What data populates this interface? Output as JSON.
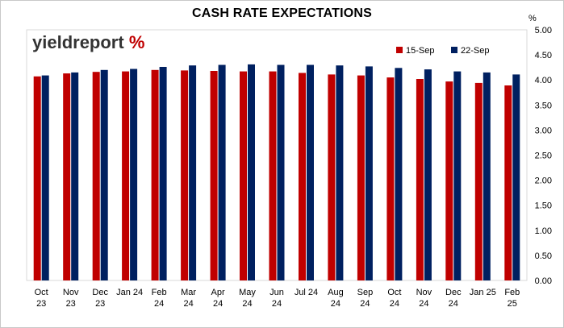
{
  "chart_data": {
    "type": "bar",
    "title": "CASH RATE EXPECTATIONS",
    "unit": "%",
    "logo": {
      "word": "yieldreport",
      "symbol": "%"
    },
    "categories": [
      [
        "Oct",
        "23"
      ],
      [
        "Nov",
        "23"
      ],
      [
        "Dec",
        "23"
      ],
      [
        "Jan 24",
        ""
      ],
      [
        "Feb",
        "24"
      ],
      [
        "Mar",
        "24"
      ],
      [
        "Apr",
        "24"
      ],
      [
        "May",
        "24"
      ],
      [
        "Jun",
        "24"
      ],
      [
        "Jul 24",
        ""
      ],
      [
        "Aug",
        "24"
      ],
      [
        "Sep",
        "24"
      ],
      [
        "Oct",
        "24"
      ],
      [
        "Nov",
        "24"
      ],
      [
        "Dec",
        "24"
      ],
      [
        "Jan 25",
        ""
      ],
      [
        "Feb",
        "25"
      ]
    ],
    "series": [
      {
        "name": "15-Sep",
        "color": "#c00000",
        "values": [
          4.07,
          4.13,
          4.16,
          4.17,
          4.2,
          4.19,
          4.18,
          4.17,
          4.17,
          4.14,
          4.11,
          4.09,
          4.05,
          4.02,
          3.97,
          3.94,
          3.89
        ]
      },
      {
        "name": "22-Sep",
        "color": "#002060",
        "values": [
          4.09,
          4.15,
          4.2,
          4.22,
          4.26,
          4.29,
          4.3,
          4.31,
          4.3,
          4.3,
          4.29,
          4.27,
          4.24,
          4.21,
          4.17,
          4.15,
          4.11
        ]
      }
    ],
    "yticks": [
      "5.00",
      "4.50",
      "4.00",
      "3.50",
      "3.00",
      "2.50",
      "2.00",
      "1.50",
      "1.00",
      "0.50",
      "0.00"
    ],
    "ylim": [
      0,
      5
    ],
    "grid": false,
    "legend": "top-right"
  }
}
